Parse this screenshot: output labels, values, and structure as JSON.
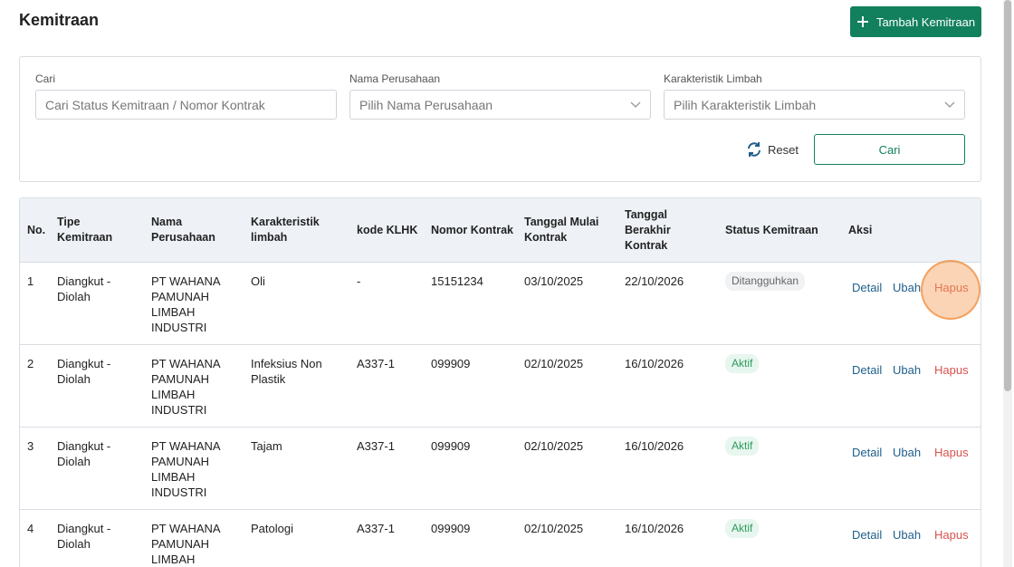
{
  "header": {
    "title": "Kemitraan",
    "add_button": "Tambah Kemitraan"
  },
  "filters": {
    "search": {
      "label": "Cari",
      "placeholder": "Cari Status Kemitraan / Nomor Kontrak"
    },
    "company": {
      "label": "Nama Perusahaan",
      "placeholder": "Pilih Nama Perusahaan"
    },
    "waste": {
      "label": "Karakteristik Limbah",
      "placeholder": "Pilih Karakteristik Limbah"
    },
    "reset": "Reset",
    "submit": "Cari"
  },
  "table": {
    "columns": [
      "No.",
      "Tipe Kemitraan",
      "Nama Perusahaan",
      "Karakteristik limbah",
      "kode KLHK",
      "Nomor Kontrak",
      "Tanggal Mulai Kontrak",
      "Tanggal Berakhir Kontrak",
      "Status Kemitraan",
      "Aksi"
    ],
    "actions": [
      "Detail",
      "Ubah",
      "Hapus"
    ],
    "rows": [
      [
        "1",
        "Diangkut - Diolah",
        "PT WAHANA PAMUNAH LIMBAH INDUSTRI",
        "Oli",
        "-",
        "15151234",
        "03/10/2025",
        "22/10/2026",
        "Ditangguhkan"
      ],
      [
        "2",
        "Diangkut - Diolah",
        "PT WAHANA PAMUNAH LIMBAH INDUSTRI",
        "Infeksius Non Plastik",
        "A337-1",
        "099909",
        "02/10/2025",
        "16/10/2026",
        "Aktif"
      ],
      [
        "3",
        "Diangkut - Diolah",
        "PT WAHANA PAMUNAH LIMBAH INDUSTRI",
        "Tajam",
        "A337-1",
        "099909",
        "02/10/2025",
        "16/10/2026",
        "Aktif"
      ],
      [
        "4",
        "Diangkut - Diolah",
        "PT WAHANA PAMUNAH LIMBAH",
        "Patologi",
        "A337-1",
        "099909",
        "02/10/2025",
        "16/10/2026",
        "Aktif"
      ]
    ]
  }
}
